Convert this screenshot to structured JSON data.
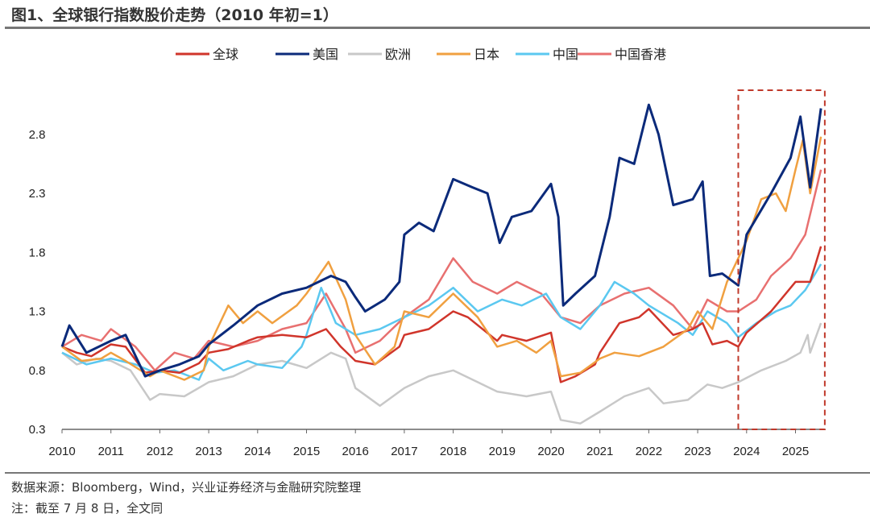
{
  "title": "图1、全球银行指数股价走势（2010 年初=1）",
  "source": "数据来源：Bloomberg，Wind，兴业证券经济与金融研究院整理",
  "note": "注：截至 7 月 8 日，全文同",
  "chart_data": {
    "type": "line",
    "title": "图1、全球银行指数股价走势（2010 年初=1）",
    "xlabel": "",
    "ylabel": "",
    "xlim": [
      2010,
      2025.55
    ],
    "ylim": [
      0.3,
      3.1
    ],
    "x_ticks": [
      "2010",
      "2011",
      "2012",
      "2013",
      "2014",
      "2015",
      "2016",
      "2017",
      "2018",
      "2019",
      "2020",
      "2021",
      "2022",
      "2023",
      "2024",
      "2025"
    ],
    "y_ticks": [
      "0.3",
      "0.8",
      "1.3",
      "1.8",
      "2.3",
      "2.8"
    ],
    "grid": false,
    "legend_position": "top",
    "highlight_box": {
      "x_from": 2023.83,
      "x_to": 2025.55,
      "color": "#c0392b",
      "style": "dashed"
    },
    "series": [
      {
        "name": "全球",
        "color": "#d0352b",
        "points": [
          [
            2010,
            1.0
          ],
          [
            2010.3,
            0.95
          ],
          [
            2010.6,
            0.92
          ],
          [
            2011,
            1.02
          ],
          [
            2011.3,
            1.0
          ],
          [
            2011.7,
            0.78
          ],
          [
            2012,
            0.8
          ],
          [
            2012.4,
            0.78
          ],
          [
            2012.8,
            0.86
          ],
          [
            2013,
            0.95
          ],
          [
            2013.4,
            0.98
          ],
          [
            2013.8,
            1.05
          ],
          [
            2014,
            1.08
          ],
          [
            2014.5,
            1.1
          ],
          [
            2015,
            1.08
          ],
          [
            2015.4,
            1.15
          ],
          [
            2015.7,
            1.0
          ],
          [
            2016,
            0.88
          ],
          [
            2016.4,
            0.85
          ],
          [
            2016.9,
            1.0
          ],
          [
            2017,
            1.1
          ],
          [
            2017.5,
            1.15
          ],
          [
            2018,
            1.3
          ],
          [
            2018.3,
            1.25
          ],
          [
            2018.9,
            1.05
          ],
          [
            2019,
            1.1
          ],
          [
            2019.5,
            1.05
          ],
          [
            2020,
            1.12
          ],
          [
            2020.2,
            0.7
          ],
          [
            2020.5,
            0.75
          ],
          [
            2020.9,
            0.85
          ],
          [
            2021,
            0.95
          ],
          [
            2021.4,
            1.2
          ],
          [
            2021.8,
            1.25
          ],
          [
            2022,
            1.32
          ],
          [
            2022.5,
            1.1
          ],
          [
            2022.9,
            1.15
          ],
          [
            2023.1,
            1.2
          ],
          [
            2023.3,
            1.02
          ],
          [
            2023.6,
            1.05
          ],
          [
            2023.83,
            1.0
          ],
          [
            2024,
            1.12
          ],
          [
            2024.5,
            1.3
          ],
          [
            2025,
            1.55
          ],
          [
            2025.3,
            1.55
          ],
          [
            2025.52,
            1.85
          ]
        ]
      },
      {
        "name": "美国",
        "color": "#0b2a7a",
        "points": [
          [
            2010,
            1.0
          ],
          [
            2010.15,
            1.18
          ],
          [
            2010.5,
            0.95
          ],
          [
            2011,
            1.05
          ],
          [
            2011.3,
            1.1
          ],
          [
            2011.7,
            0.75
          ],
          [
            2012,
            0.8
          ],
          [
            2012.4,
            0.85
          ],
          [
            2012.8,
            0.92
          ],
          [
            2013,
            1.02
          ],
          [
            2013.5,
            1.18
          ],
          [
            2014,
            1.35
          ],
          [
            2014.5,
            1.45
          ],
          [
            2015,
            1.5
          ],
          [
            2015.5,
            1.6
          ],
          [
            2015.8,
            1.55
          ],
          [
            2016,
            1.42
          ],
          [
            2016.2,
            1.3
          ],
          [
            2016.6,
            1.4
          ],
          [
            2016.9,
            1.55
          ],
          [
            2017,
            1.95
          ],
          [
            2017.3,
            2.05
          ],
          [
            2017.6,
            1.98
          ],
          [
            2018,
            2.42
          ],
          [
            2018.4,
            2.35
          ],
          [
            2018.7,
            2.3
          ],
          [
            2018.95,
            1.88
          ],
          [
            2019.2,
            2.1
          ],
          [
            2019.6,
            2.15
          ],
          [
            2020,
            2.38
          ],
          [
            2020.15,
            2.1
          ],
          [
            2020.25,
            1.35
          ],
          [
            2020.5,
            1.45
          ],
          [
            2020.9,
            1.6
          ],
          [
            2021.2,
            2.1
          ],
          [
            2021.4,
            2.6
          ],
          [
            2021.7,
            2.55
          ],
          [
            2022,
            3.05
          ],
          [
            2022.2,
            2.8
          ],
          [
            2022.5,
            2.2
          ],
          [
            2022.9,
            2.25
          ],
          [
            2023.1,
            2.4
          ],
          [
            2023.25,
            1.6
          ],
          [
            2023.5,
            1.62
          ],
          [
            2023.83,
            1.52
          ],
          [
            2024,
            1.95
          ],
          [
            2024.5,
            2.3
          ],
          [
            2024.9,
            2.6
          ],
          [
            2025.1,
            2.95
          ],
          [
            2025.3,
            2.35
          ],
          [
            2025.52,
            3.02
          ]
        ]
      },
      {
        "name": "欧洲",
        "color": "#c8c8c8",
        "points": [
          [
            2010,
            0.95
          ],
          [
            2010.3,
            0.85
          ],
          [
            2010.7,
            0.9
          ],
          [
            2011,
            0.88
          ],
          [
            2011.4,
            0.8
          ],
          [
            2011.8,
            0.55
          ],
          [
            2012,
            0.6
          ],
          [
            2012.5,
            0.58
          ],
          [
            2013,
            0.7
          ],
          [
            2013.5,
            0.75
          ],
          [
            2014,
            0.85
          ],
          [
            2014.5,
            0.88
          ],
          [
            2015,
            0.82
          ],
          [
            2015.5,
            0.95
          ],
          [
            2015.8,
            0.9
          ],
          [
            2016,
            0.65
          ],
          [
            2016.5,
            0.5
          ],
          [
            2017,
            0.65
          ],
          [
            2017.5,
            0.75
          ],
          [
            2018,
            0.8
          ],
          [
            2018.5,
            0.7
          ],
          [
            2018.9,
            0.62
          ],
          [
            2019.5,
            0.58
          ],
          [
            2020,
            0.62
          ],
          [
            2020.2,
            0.38
          ],
          [
            2020.6,
            0.35
          ],
          [
            2021,
            0.45
          ],
          [
            2021.5,
            0.58
          ],
          [
            2022,
            0.65
          ],
          [
            2022.3,
            0.52
          ],
          [
            2022.8,
            0.55
          ],
          [
            2023.2,
            0.68
          ],
          [
            2023.5,
            0.65
          ],
          [
            2023.83,
            0.7
          ],
          [
            2024.3,
            0.8
          ],
          [
            2024.8,
            0.88
          ],
          [
            2025.1,
            0.95
          ],
          [
            2025.25,
            1.1
          ],
          [
            2025.3,
            0.95
          ],
          [
            2025.52,
            1.2
          ]
        ]
      },
      {
        "name": "日本",
        "color": "#f0a040",
        "points": [
          [
            2010,
            1.0
          ],
          [
            2010.4,
            0.88
          ],
          [
            2010.8,
            0.9
          ],
          [
            2011,
            0.95
          ],
          [
            2011.3,
            0.88
          ],
          [
            2011.8,
            0.75
          ],
          [
            2012,
            0.8
          ],
          [
            2012.5,
            0.72
          ],
          [
            2012.9,
            0.8
          ],
          [
            2013,
            1.0
          ],
          [
            2013.4,
            1.35
          ],
          [
            2013.7,
            1.2
          ],
          [
            2014,
            1.3
          ],
          [
            2014.3,
            1.2
          ],
          [
            2014.8,
            1.35
          ],
          [
            2015,
            1.45
          ],
          [
            2015.45,
            1.72
          ],
          [
            2015.8,
            1.4
          ],
          [
            2016,
            1.1
          ],
          [
            2016.4,
            0.85
          ],
          [
            2016.8,
            1.0
          ],
          [
            2017,
            1.3
          ],
          [
            2017.5,
            1.25
          ],
          [
            2018,
            1.45
          ],
          [
            2018.5,
            1.25
          ],
          [
            2018.9,
            1.0
          ],
          [
            2019.3,
            1.05
          ],
          [
            2019.7,
            0.95
          ],
          [
            2020,
            1.05
          ],
          [
            2020.2,
            0.75
          ],
          [
            2020.6,
            0.78
          ],
          [
            2021,
            0.9
          ],
          [
            2021.3,
            0.95
          ],
          [
            2021.8,
            0.92
          ],
          [
            2022.3,
            1.0
          ],
          [
            2022.8,
            1.15
          ],
          [
            2023,
            1.3
          ],
          [
            2023.3,
            1.15
          ],
          [
            2023.6,
            1.55
          ],
          [
            2023.83,
            1.75
          ],
          [
            2024,
            1.9
          ],
          [
            2024.3,
            2.25
          ],
          [
            2024.6,
            2.3
          ],
          [
            2024.8,
            2.15
          ],
          [
            2025,
            2.5
          ],
          [
            2025.15,
            2.75
          ],
          [
            2025.3,
            2.3
          ],
          [
            2025.52,
            2.78
          ]
        ]
      },
      {
        "name": "中国",
        "color": "#5bc8f0",
        "points": [
          [
            2010,
            0.95
          ],
          [
            2010.5,
            0.85
          ],
          [
            2011,
            0.9
          ],
          [
            2011.5,
            0.85
          ],
          [
            2011.9,
            0.78
          ],
          [
            2012.3,
            0.8
          ],
          [
            2012.8,
            0.72
          ],
          [
            2013,
            0.9
          ],
          [
            2013.3,
            0.8
          ],
          [
            2013.8,
            0.88
          ],
          [
            2014,
            0.85
          ],
          [
            2014.5,
            0.82
          ],
          [
            2014.9,
            1.0
          ],
          [
            2015,
            1.1
          ],
          [
            2015.3,
            1.5
          ],
          [
            2015.6,
            1.2
          ],
          [
            2016,
            1.1
          ],
          [
            2016.5,
            1.15
          ],
          [
            2017,
            1.25
          ],
          [
            2017.5,
            1.35
          ],
          [
            2018,
            1.5
          ],
          [
            2018.5,
            1.3
          ],
          [
            2019,
            1.4
          ],
          [
            2019.4,
            1.35
          ],
          [
            2019.9,
            1.45
          ],
          [
            2020.2,
            1.25
          ],
          [
            2020.6,
            1.15
          ],
          [
            2021,
            1.35
          ],
          [
            2021.3,
            1.55
          ],
          [
            2021.7,
            1.45
          ],
          [
            2022,
            1.35
          ],
          [
            2022.6,
            1.2
          ],
          [
            2022.9,
            1.1
          ],
          [
            2023.2,
            1.3
          ],
          [
            2023.6,
            1.2
          ],
          [
            2023.83,
            1.08
          ],
          [
            2024.2,
            1.2
          ],
          [
            2024.6,
            1.3
          ],
          [
            2024.9,
            1.35
          ],
          [
            2025.2,
            1.48
          ],
          [
            2025.52,
            1.7
          ]
        ]
      },
      {
        "name": "中国香港",
        "color": "#e87070",
        "points": [
          [
            2010,
            1.0
          ],
          [
            2010.4,
            1.1
          ],
          [
            2010.8,
            1.05
          ],
          [
            2011,
            1.15
          ],
          [
            2011.5,
            1.0
          ],
          [
            2011.9,
            0.8
          ],
          [
            2012.3,
            0.95
          ],
          [
            2012.7,
            0.9
          ],
          [
            2013,
            1.05
          ],
          [
            2013.5,
            1.0
          ],
          [
            2014,
            1.05
          ],
          [
            2014.5,
            1.15
          ],
          [
            2015,
            1.2
          ],
          [
            2015.4,
            1.45
          ],
          [
            2015.8,
            1.15
          ],
          [
            2016,
            0.95
          ],
          [
            2016.5,
            1.05
          ],
          [
            2017,
            1.25
          ],
          [
            2017.5,
            1.4
          ],
          [
            2018,
            1.75
          ],
          [
            2018.4,
            1.55
          ],
          [
            2018.9,
            1.45
          ],
          [
            2019.3,
            1.55
          ],
          [
            2019.8,
            1.45
          ],
          [
            2020.2,
            1.25
          ],
          [
            2020.6,
            1.2
          ],
          [
            2021,
            1.35
          ],
          [
            2021.5,
            1.45
          ],
          [
            2022,
            1.5
          ],
          [
            2022.5,
            1.35
          ],
          [
            2022.9,
            1.15
          ],
          [
            2023.2,
            1.4
          ],
          [
            2023.6,
            1.3
          ],
          [
            2023.83,
            1.3
          ],
          [
            2024.2,
            1.4
          ],
          [
            2024.5,
            1.6
          ],
          [
            2024.9,
            1.75
          ],
          [
            2025.2,
            1.95
          ],
          [
            2025.52,
            2.5
          ]
        ]
      }
    ]
  }
}
